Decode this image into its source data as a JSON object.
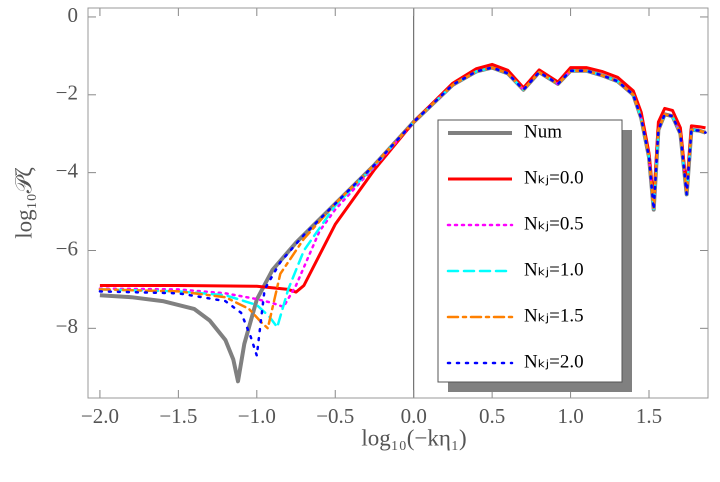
{
  "chart_data": {
    "type": "line",
    "xlabel": "log₁₀(−kη₁)",
    "ylabel": "log₁₀𝒫ζ",
    "xlim": [
      -2.076,
      1.876
    ],
    "ylim": [
      -9.79,
      0.23
    ],
    "xticks": [
      {
        "value": -2,
        "label": "−2.0"
      },
      {
        "value": -1.5,
        "label": "−1.5"
      },
      {
        "value": -1,
        "label": "−1.0"
      },
      {
        "value": -0.5,
        "label": "−0.5"
      },
      {
        "value": 0,
        "label": "0.0"
      },
      {
        "value": 0.5,
        "label": "0.5"
      },
      {
        "value": 1,
        "label": "1.0"
      },
      {
        "value": 1.5,
        "label": "1.5"
      }
    ],
    "yticks": [
      0,
      {
        "value": -2,
        "label": "−2"
      },
      {
        "value": -4,
        "label": "−4"
      },
      {
        "value": -6,
        "label": "−6"
      },
      {
        "value": -8,
        "label": "−8"
      }
    ],
    "vline_x": 0,
    "series": [
      {
        "name": "Num",
        "color": "#808080",
        "style": "solid",
        "width": 4,
        "x": [
          -2.0,
          -1.8,
          -1.6,
          -1.4,
          -1.3,
          -1.2,
          -1.15,
          -1.12,
          -1.08,
          -1.0,
          -0.9,
          -0.75,
          -0.5,
          -0.25,
          0,
          0.25,
          0.4,
          0.5,
          0.6,
          0.7,
          0.8,
          0.92,
          1.0,
          1.1,
          1.2,
          1.3,
          1.4,
          1.45,
          1.5,
          1.53,
          1.56,
          1.6,
          1.65,
          1.7,
          1.74,
          1.77,
          1.82,
          1.86
        ],
        "values": [
          -7.15,
          -7.2,
          -7.3,
          -7.5,
          -7.8,
          -8.3,
          -8.8,
          -9.36,
          -8.4,
          -7.26,
          -6.5,
          -5.8,
          -4.8,
          -3.8,
          -2.7,
          -1.74,
          -1.4,
          -1.3,
          -1.45,
          -1.87,
          -1.42,
          -1.72,
          -1.38,
          -1.38,
          -1.5,
          -1.65,
          -2.0,
          -2.6,
          -3.6,
          -4.95,
          -2.9,
          -2.5,
          -2.55,
          -3.0,
          -4.56,
          -2.9,
          -2.92,
          -2.97
        ]
      },
      {
        "name": "Nₖⱼ=0.0",
        "color": "#ff0000",
        "style": "solid",
        "width": 3,
        "x": [
          -2.0,
          -1.5,
          -1.0,
          -0.8,
          -0.75,
          -0.7,
          -0.5,
          -0.25,
          0,
          0.25,
          0.4,
          0.5,
          0.6,
          0.7,
          0.8,
          0.92,
          1.0,
          1.1,
          1.2,
          1.3,
          1.4,
          1.45,
          1.5,
          1.53,
          1.56,
          1.6,
          1.65,
          1.7,
          1.74,
          1.77,
          1.82,
          1.86
        ],
        "values": [
          -6.9,
          -6.9,
          -6.92,
          -7.0,
          -7.07,
          -6.9,
          -5.33,
          -3.92,
          -2.7,
          -1.7,
          -1.33,
          -1.22,
          -1.37,
          -1.82,
          -1.36,
          -1.67,
          -1.3,
          -1.3,
          -1.4,
          -1.55,
          -1.9,
          -2.45,
          -3.5,
          -4.8,
          -2.7,
          -2.35,
          -2.4,
          -2.85,
          -4.45,
          -2.8,
          -2.82,
          -2.85
        ]
      },
      {
        "name": "Nₖⱼ=0.5",
        "color": "#ff00ff",
        "style": "dotted",
        "width": 2.5,
        "x": [
          -2,
          -1.5,
          -1.2,
          -1.0,
          -0.9,
          -0.83,
          -0.75,
          -0.6,
          -0.5,
          -0.25,
          0,
          0.25,
          0.4,
          0.5,
          0.6,
          0.7,
          0.8,
          0.92,
          1.0,
          1.1,
          1.2,
          1.3,
          1.4,
          1.45,
          1.5,
          1.53,
          1.56,
          1.6,
          1.65,
          1.7,
          1.74,
          1.77,
          1.82,
          1.86
        ],
        "values": [
          -6.98,
          -7.0,
          -7.1,
          -7.25,
          -7.35,
          -7.45,
          -6.9,
          -5.5,
          -4.95,
          -3.85,
          -2.7,
          -1.74,
          -1.4,
          -1.3,
          -1.45,
          -1.87,
          -1.42,
          -1.72,
          -1.38,
          -1.38,
          -1.5,
          -1.65,
          -2.0,
          -2.6,
          -3.6,
          -4.95,
          -2.9,
          -2.5,
          -2.55,
          -3.0,
          -4.56,
          -2.9,
          -2.92,
          -2.97
        ]
      },
      {
        "name": "Nₖⱼ=1.0",
        "color": "#00ffff",
        "style": "dashed",
        "width": 2.5,
        "x": [
          -2,
          -1.5,
          -1.2,
          -1.0,
          -0.92,
          -0.87,
          -0.8,
          -0.7,
          -0.5,
          -0.25,
          0,
          0.25,
          0.4,
          0.5,
          0.6,
          0.7,
          0.8,
          0.92,
          1.0,
          1.1,
          1.2,
          1.3,
          1.4,
          1.45,
          1.5,
          1.53,
          1.56,
          1.6,
          1.65,
          1.7,
          1.74,
          1.77,
          1.82,
          1.86
        ],
        "values": [
          -7.0,
          -7.05,
          -7.15,
          -7.4,
          -7.7,
          -7.97,
          -7.0,
          -6.0,
          -4.85,
          -3.82,
          -2.7,
          -1.74,
          -1.4,
          -1.3,
          -1.45,
          -1.87,
          -1.42,
          -1.72,
          -1.38,
          -1.38,
          -1.5,
          -1.65,
          -2.0,
          -2.6,
          -3.6,
          -4.95,
          -2.9,
          -2.5,
          -2.55,
          -3.0,
          -4.56,
          -2.9,
          -2.92,
          -2.97
        ]
      },
      {
        "name": "Nₖⱼ=1.5",
        "color": "#ff8000",
        "style": "dashdot",
        "width": 2.5,
        "x": [
          -2,
          -1.5,
          -1.2,
          -1.05,
          -0.97,
          -0.93,
          -0.85,
          -0.7,
          -0.5,
          -0.25,
          0,
          0.25,
          0.4,
          0.5,
          0.6,
          0.7,
          0.8,
          0.92,
          1.0,
          1.1,
          1.2,
          1.3,
          1.4,
          1.45,
          1.5,
          1.53,
          1.56,
          1.6,
          1.65,
          1.7,
          1.74,
          1.77,
          1.82,
          1.86
        ],
        "values": [
          -7.0,
          -7.05,
          -7.2,
          -7.5,
          -7.85,
          -8.0,
          -6.6,
          -5.7,
          -4.8,
          -3.8,
          -2.7,
          -1.74,
          -1.4,
          -1.3,
          -1.45,
          -1.87,
          -1.42,
          -1.72,
          -1.38,
          -1.38,
          -1.5,
          -1.65,
          -2.0,
          -2.6,
          -3.6,
          -4.95,
          -2.9,
          -2.5,
          -2.55,
          -3.0,
          -4.56,
          -2.9,
          -2.92,
          -2.97
        ]
      },
      {
        "name": "Nₖⱼ=2.0",
        "color": "#0000ff",
        "style": "sparse-dotted",
        "width": 2.5,
        "x": [
          -2,
          -1.5,
          -1.2,
          -1.1,
          -1.04,
          -1.0,
          -0.95,
          -0.85,
          -0.7,
          -0.5,
          -0.25,
          0,
          0.25,
          0.4,
          0.5,
          0.6,
          0.7,
          0.8,
          0.92,
          1.0,
          1.1,
          1.2,
          1.3,
          1.4,
          1.45,
          1.5,
          1.53,
          1.56,
          1.6,
          1.65,
          1.7,
          1.74,
          1.77,
          1.82,
          1.86
        ],
        "values": [
          -7.05,
          -7.1,
          -7.3,
          -7.6,
          -8.2,
          -8.7,
          -7.0,
          -6.3,
          -5.6,
          -4.8,
          -3.8,
          -2.7,
          -1.74,
          -1.4,
          -1.3,
          -1.45,
          -1.87,
          -1.42,
          -1.72,
          -1.38,
          -1.38,
          -1.5,
          -1.65,
          -2.0,
          -2.6,
          -3.6,
          -4.95,
          -2.9,
          -2.5,
          -2.55,
          -3.0,
          -4.56,
          -2.9,
          -2.92,
          -2.97
        ]
      }
    ]
  }
}
